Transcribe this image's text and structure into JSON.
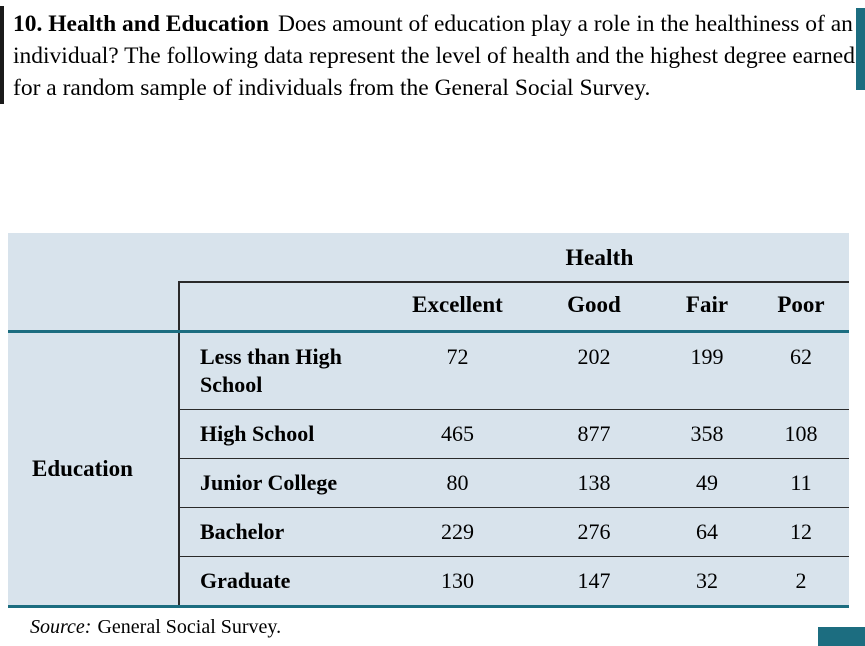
{
  "problem": {
    "number": "10.",
    "title": "Health and Education",
    "body": "Does amount of education play a role in the healthiness of an individual? The following data represent the level of health and the highest degree earned for a random sample of individuals from the General Social Survey."
  },
  "table": {
    "column_group_label": "Health",
    "row_group_label": "Education",
    "columns": [
      "Excellent",
      "Good",
      "Fair",
      "Poor"
    ],
    "rows": [
      {
        "label": "Less than High School",
        "values": [
          "72",
          "202",
          "199",
          "62"
        ]
      },
      {
        "label": "High School",
        "values": [
          "465",
          "877",
          "358",
          "108"
        ]
      },
      {
        "label": "Junior College",
        "values": [
          "80",
          "138",
          "49",
          "11"
        ]
      },
      {
        "label": "Bachelor",
        "values": [
          "229",
          "276",
          "64",
          "12"
        ]
      },
      {
        "label": "Graduate",
        "values": [
          "130",
          "147",
          "32",
          "2"
        ]
      }
    ]
  },
  "source": {
    "prefix": "Source:",
    "text": "General Social Survey."
  },
  "colors": {
    "table_bg": "#d8e3ec",
    "rule_teal": "#1c6d80",
    "accent_bar": "#1c6d80"
  }
}
